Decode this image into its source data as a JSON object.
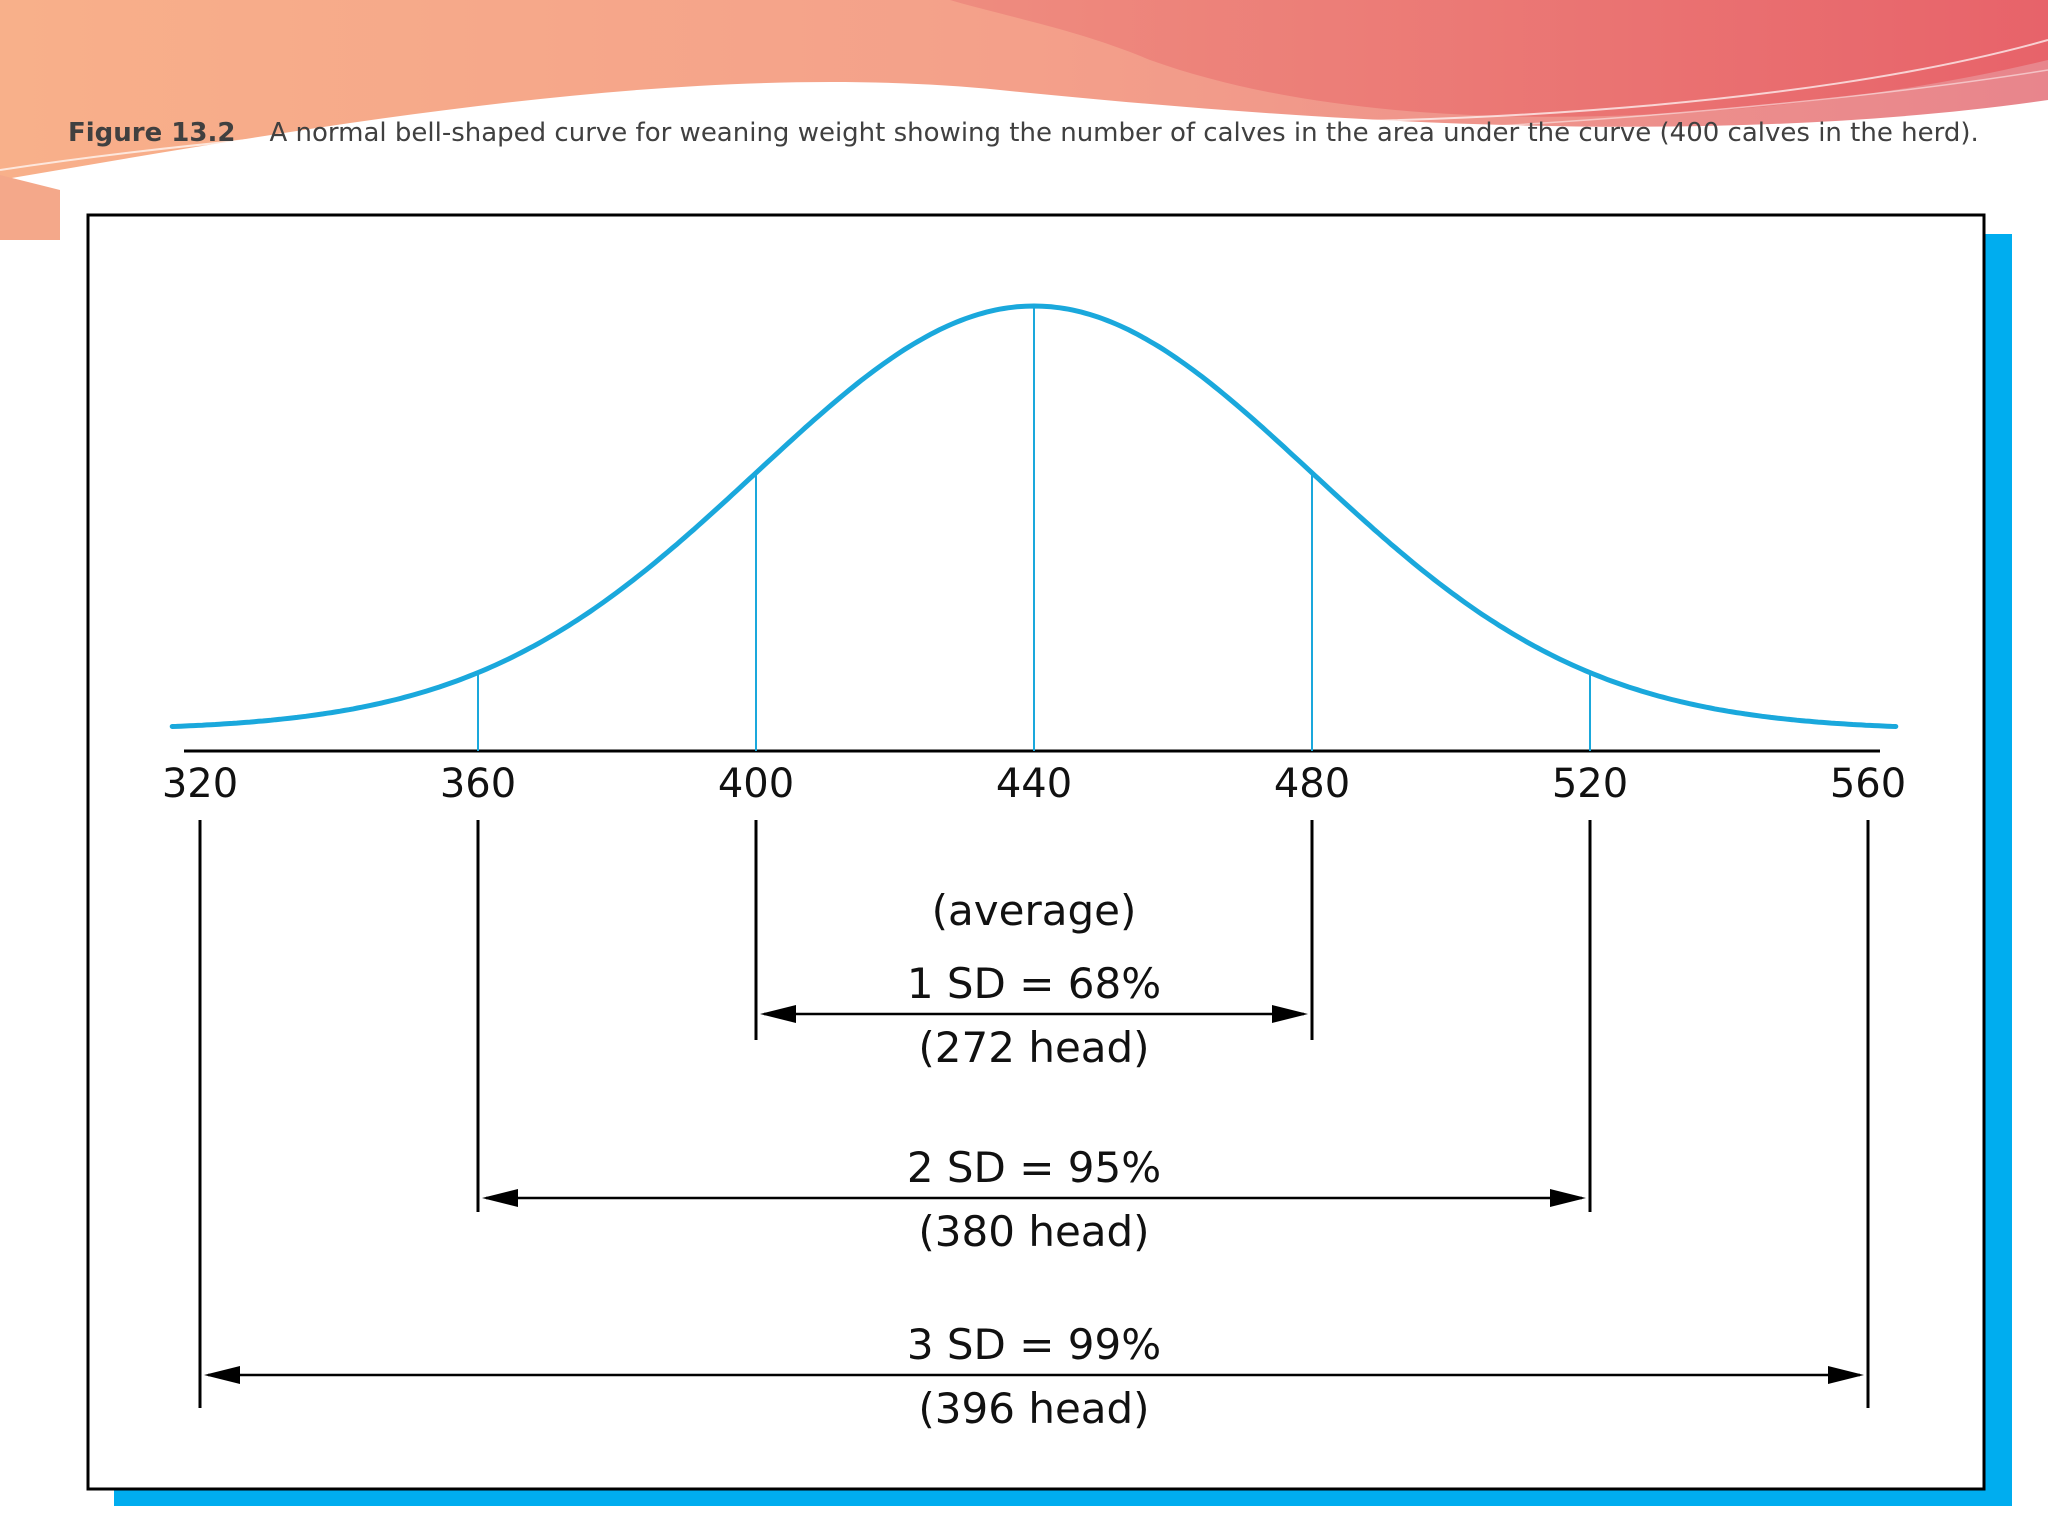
{
  "caption": {
    "figure_label": "Figure 13.2",
    "text": "A normal bell-shaped curve for weaning weight showing the number of calves in the area under the curve (400 calves in the herd)."
  },
  "colors": {
    "curve": "#1aa8dc",
    "frame_shadow": "#00adef",
    "banner_light": "#f5b08c",
    "banner_dark": "#e9707a"
  },
  "chart_data": {
    "type": "area",
    "title": "",
    "xlabel": "",
    "ylabel": "",
    "distribution": "normal",
    "mean": 440,
    "sd": 40,
    "x_ticks": [
      320,
      360,
      400,
      440,
      480,
      520,
      560
    ],
    "xlim": [
      320,
      560
    ],
    "herd_size": 400,
    "mean_label": "(average)",
    "intervals": [
      {
        "from": 400,
        "to": 480,
        "label": "1 SD = 68%",
        "count_label": "(272 head)"
      },
      {
        "from": 360,
        "to": 520,
        "label": "2 SD = 95%",
        "count_label": "(380 head)"
      },
      {
        "from": 320,
        "to": 560,
        "label": "3 SD = 99%",
        "count_label": "(396 head)"
      }
    ]
  }
}
